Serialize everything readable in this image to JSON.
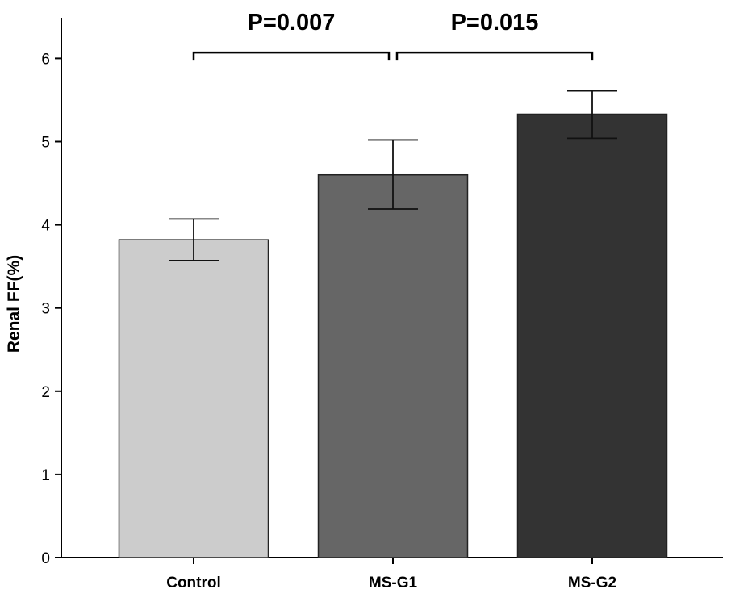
{
  "chart_data": {
    "type": "bar",
    "title": "",
    "xlabel": "",
    "ylabel": "Renal FF(%)",
    "ylim": [
      0,
      6.5
    ],
    "y_ticks": [
      "0",
      "1",
      "2",
      "3",
      "4",
      "5",
      "6"
    ],
    "categories": [
      "Control",
      "MS-G1",
      "MS-G2"
    ],
    "values": [
      3.82,
      4.6,
      5.33
    ],
    "error_low": [
      3.57,
      4.19,
      5.04
    ],
    "error_high": [
      4.07,
      5.02,
      5.61
    ],
    "bar_colors": [
      "#cccccc",
      "#666666",
      "#333333"
    ],
    "annotations": [
      {
        "text": "P=0.007",
        "from": 0,
        "to": 1,
        "y": 6.07
      },
      {
        "text": "P=0.015",
        "from": 1,
        "to": 2,
        "y": 6.07
      }
    ],
    "grid": false,
    "legend": "none"
  }
}
